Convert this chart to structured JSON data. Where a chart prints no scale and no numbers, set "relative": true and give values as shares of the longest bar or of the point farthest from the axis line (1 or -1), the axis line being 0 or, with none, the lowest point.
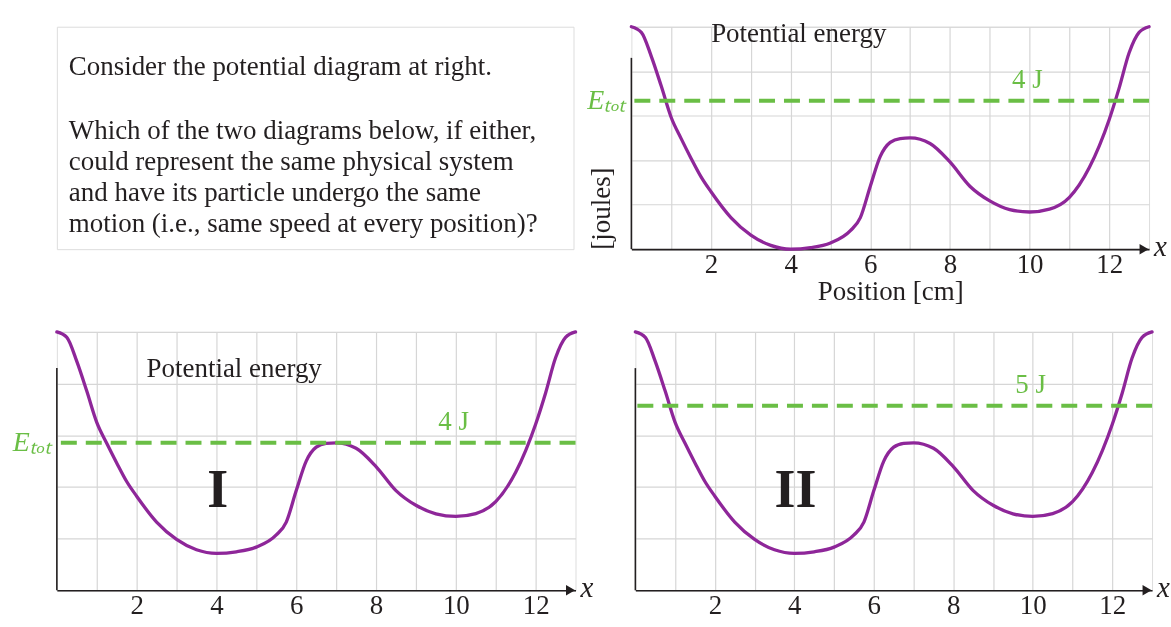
{
  "chart_data": [
    {
      "type": "other",
      "annotations": [
        "Consider the potential diagram at right.",
        "Which of the two diagrams below, if either,\ncould represent the same physical system\nand have its particle undergo the same\nmotion (i.e., same speed at every position)?"
      ]
    },
    {
      "type": "line",
      "relative": true,
      "xlabel": "Position [cm]",
      "ylabel": "[joules]",
      "grid": true,
      "xlim": [
        0,
        13
      ],
      "xticks": [
        {
          "value": 1,
          "label": null
        },
        2,
        {
          "value": 3,
          "label": null
        },
        4,
        {
          "value": 5,
          "label": null
        },
        6,
        {
          "value": 7,
          "label": null
        },
        8,
        {
          "value": 9,
          "label": null
        },
        10,
        {
          "value": 11,
          "label": null
        },
        12
      ],
      "x": [
        0,
        0.25,
        0.5,
        0.75,
        1,
        1.25,
        1.5,
        1.75,
        2,
        2.5,
        3,
        3.5,
        4,
        4.5,
        5,
        5.5,
        5.75,
        6,
        6.25,
        6.5,
        6.75,
        7,
        7.5,
        8,
        8.5,
        9,
        9.5,
        10,
        10.5,
        11,
        11.5,
        12,
        12.25,
        12.5,
        12.75,
        13
      ],
      "series": [
        {
          "color": "#8e2699",
          "values": [
            1.0,
            0.975,
            0.867,
            0.733,
            0.592,
            0.497,
            0.408,
            0.325,
            0.258,
            0.142,
            0.063,
            0.017,
            0,
            0.007,
            0.028,
            0.083,
            0.142,
            0.283,
            0.417,
            0.48,
            0.497,
            0.5,
            0.475,
            0.392,
            0.283,
            0.217,
            0.178,
            0.167,
            0.18,
            0.233,
            0.367,
            0.583,
            0.725,
            0.883,
            0.975,
            1.0
          ]
        }
      ],
      "ref_lines": [
        {
          "axis": "y",
          "value": 0.667,
          "label": "4 J",
          "color": "#6abe45",
          "line_style": "dashed"
        }
      ],
      "annotations": [
        {
          "text": "Potential energy",
          "x": 0.5,
          "y": 0.867
        },
        "Eₜₒₜ",
        "x"
      ]
    },
    {
      "type": "line",
      "relative": true,
      "title": "I",
      "grid": true,
      "xlim": [
        0,
        13
      ],
      "xticks": [
        {
          "value": 1,
          "label": null
        },
        2,
        {
          "value": 3,
          "label": null
        },
        4,
        {
          "value": 5,
          "label": null
        },
        6,
        {
          "value": 7,
          "label": null
        },
        8,
        {
          "value": 9,
          "label": null
        },
        10,
        {
          "value": 11,
          "label": null
        },
        12
      ],
      "x": [
        0,
        0.25,
        0.5,
        0.75,
        1,
        1.25,
        1.5,
        1.75,
        2,
        2.5,
        3,
        3.5,
        4,
        4.5,
        5,
        5.5,
        5.75,
        6,
        6.25,
        6.5,
        6.75,
        7,
        7.5,
        8,
        8.5,
        9,
        9.5,
        10,
        10.5,
        11,
        11.5,
        12,
        12.25,
        12.5,
        12.75,
        13
      ],
      "series": [
        {
          "color": "#8e2699",
          "values": [
            1.0,
            0.979,
            0.886,
            0.771,
            0.65,
            0.569,
            0.493,
            0.421,
            0.364,
            0.264,
            0.197,
            0.157,
            0.143,
            0.149,
            0.167,
            0.214,
            0.264,
            0.386,
            0.5,
            0.554,
            0.569,
            0.571,
            0.55,
            0.479,
            0.386,
            0.329,
            0.296,
            0.286,
            0.297,
            0.343,
            0.457,
            0.643,
            0.764,
            0.9,
            0.979,
            1.0
          ]
        }
      ],
      "ref_lines": [
        {
          "axis": "y",
          "value": 0.571,
          "label": "4 J",
          "color": "#6abe45",
          "line_style": "dashed"
        }
      ],
      "annotations": [
        {
          "text": "Potential energy",
          "x": 0.75,
          "y": 0.771
        },
        "Eₜₒₜ",
        "x"
      ]
    },
    {
      "type": "line",
      "relative": true,
      "title": "II",
      "grid": true,
      "xlim": [
        0,
        13
      ],
      "xticks": [
        {
          "value": 1,
          "label": null
        },
        2,
        {
          "value": 3,
          "label": null
        },
        4,
        {
          "value": 5,
          "label": null
        },
        6,
        {
          "value": 7,
          "label": null
        },
        8,
        {
          "value": 9,
          "label": null
        },
        10,
        {
          "value": 11,
          "label": null
        },
        12
      ],
      "x": [
        0,
        0.25,
        0.5,
        0.75,
        1,
        1.25,
        1.5,
        1.75,
        2,
        2.5,
        3,
        3.5,
        4,
        4.5,
        5,
        5.5,
        5.75,
        6,
        6.25,
        6.5,
        6.75,
        7,
        7.5,
        8,
        8.5,
        9,
        9.5,
        10,
        10.5,
        11,
        11.5,
        12,
        12.25,
        12.5,
        12.75,
        13
      ],
      "series": [
        {
          "color": "#8e2699",
          "values": [
            1.0,
            0.979,
            0.886,
            0.771,
            0.65,
            0.569,
            0.493,
            0.421,
            0.364,
            0.264,
            0.197,
            0.157,
            0.143,
            0.149,
            0.167,
            0.214,
            0.264,
            0.386,
            0.5,
            0.554,
            0.569,
            0.571,
            0.55,
            0.479,
            0.386,
            0.329,
            0.296,
            0.286,
            0.297,
            0.343,
            0.457,
            0.643,
            0.764,
            0.9,
            0.979,
            1.0
          ]
        }
      ],
      "ref_lines": [
        {
          "axis": "y",
          "value": 0.714,
          "label": "5 J",
          "color": "#6abe45",
          "line_style": "dashed"
        }
      ],
      "annotations": [
        "x"
      ]
    }
  ]
}
